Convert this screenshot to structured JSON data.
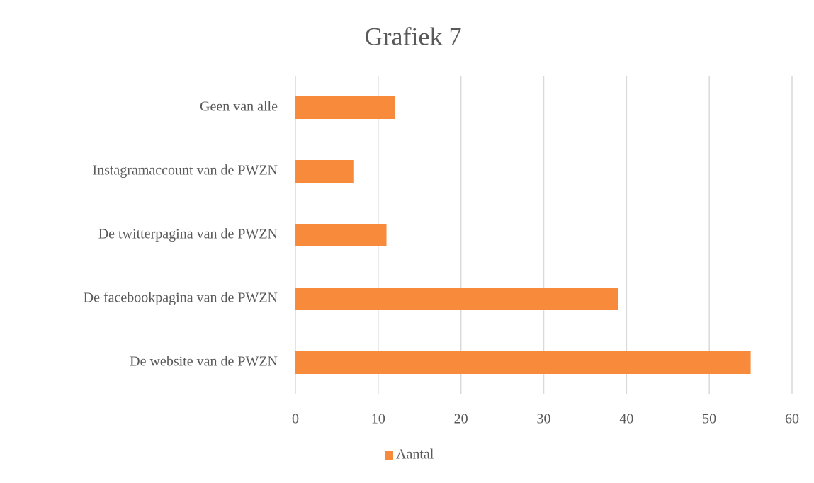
{
  "chart_data": {
    "type": "bar",
    "orientation": "horizontal",
    "title": "Grafiek 7",
    "categories": [
      "Geen van alle",
      "Instagramaccount van de PWZN",
      "De twitterpagina van de PWZN",
      "De facebookpagina van de PWZN",
      "De website van de PWZN"
    ],
    "series": [
      {
        "name": "Aantal",
        "color": "#f78a3b",
        "values": [
          12,
          7,
          11,
          39,
          55
        ]
      }
    ],
    "xlim": [
      0,
      60
    ],
    "xticks": [
      0,
      10,
      20,
      30,
      40,
      50,
      60
    ],
    "grid": true,
    "legend": "bottom"
  }
}
